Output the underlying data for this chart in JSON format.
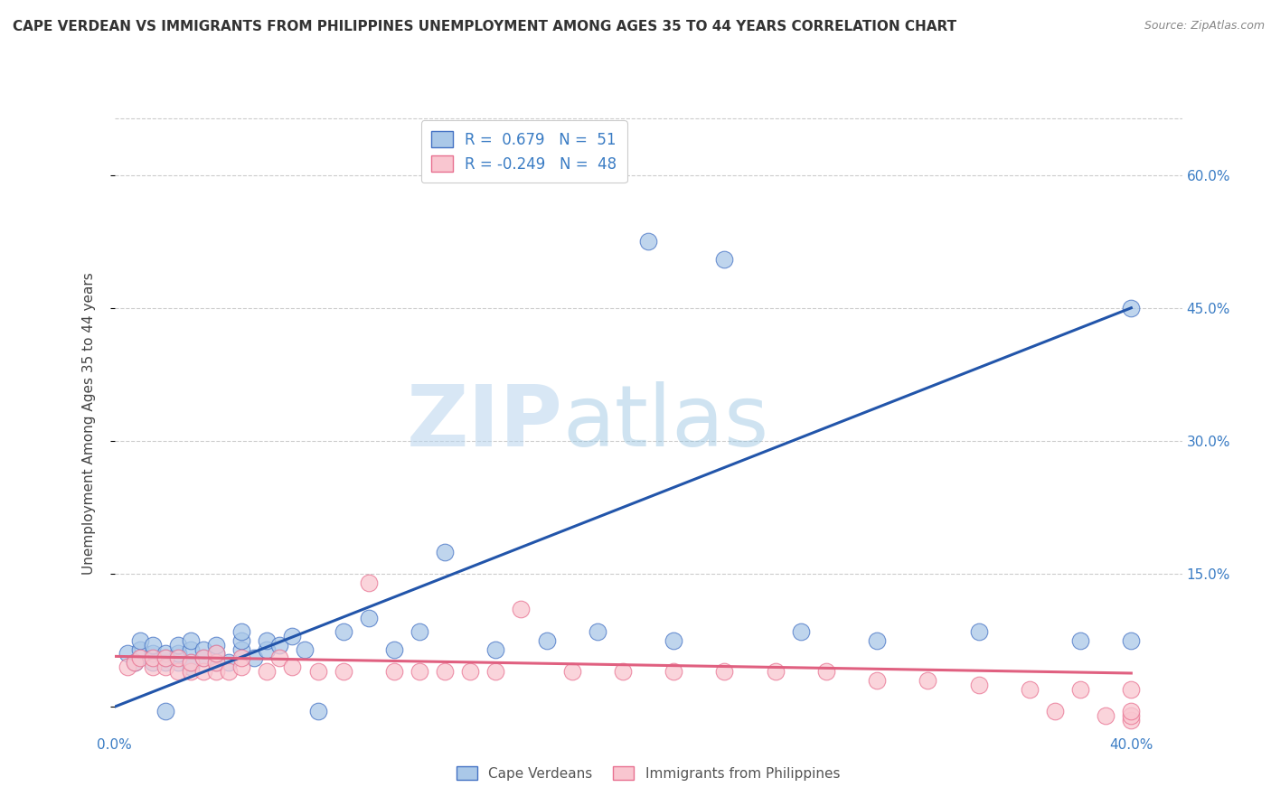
{
  "title": "CAPE VERDEAN VS IMMIGRANTS FROM PHILIPPINES UNEMPLOYMENT AMONG AGES 35 TO 44 YEARS CORRELATION CHART",
  "source": "Source: ZipAtlas.com",
  "ylabel": "Unemployment Among Ages 35 to 44 years",
  "ytick_values": [
    0.0,
    0.15,
    0.3,
    0.45,
    0.6
  ],
  "ytick_labels": [
    "",
    "15.0%",
    "30.0%",
    "45.0%",
    "60.0%"
  ],
  "xlim": [
    0.0,
    0.42
  ],
  "ylim": [
    -0.03,
    0.67
  ],
  "blue_R": 0.679,
  "blue_N": 51,
  "pink_R": -0.249,
  "pink_N": 48,
  "blue_fill_color": "#aac8e8",
  "blue_edge_color": "#4472c4",
  "pink_fill_color": "#f9c6d0",
  "pink_edge_color": "#e87090",
  "blue_line_color": "#2255aa",
  "pink_line_color": "#e06080",
  "background_color": "#ffffff",
  "grid_color": "#cccccc",
  "watermark_zip": "ZIP",
  "watermark_atlas": "atlas",
  "legend_label_blue": "Cape Verdeans",
  "legend_label_pink": "Immigrants from Philippines",
  "blue_scatter_x": [
    0.005,
    0.008,
    0.01,
    0.01,
    0.015,
    0.015,
    0.015,
    0.02,
    0.02,
    0.02,
    0.02,
    0.025,
    0.025,
    0.025,
    0.03,
    0.03,
    0.03,
    0.03,
    0.035,
    0.035,
    0.04,
    0.04,
    0.04,
    0.045,
    0.05,
    0.05,
    0.05,
    0.055,
    0.06,
    0.06,
    0.065,
    0.07,
    0.075,
    0.08,
    0.09,
    0.1,
    0.11,
    0.12,
    0.13,
    0.15,
    0.17,
    0.19,
    0.21,
    0.22,
    0.24,
    0.27,
    0.3,
    0.34,
    0.38,
    0.4,
    0.4
  ],
  "blue_scatter_y": [
    0.06,
    0.05,
    0.065,
    0.075,
    0.05,
    0.06,
    0.07,
    0.05,
    0.055,
    0.06,
    -0.005,
    0.05,
    0.06,
    0.07,
    0.045,
    0.05,
    0.065,
    0.075,
    0.055,
    0.065,
    0.05,
    0.06,
    0.07,
    0.05,
    0.065,
    0.075,
    0.085,
    0.055,
    0.065,
    0.075,
    0.07,
    0.08,
    0.065,
    -0.005,
    0.085,
    0.1,
    0.065,
    0.085,
    0.175,
    0.065,
    0.075,
    0.085,
    0.525,
    0.075,
    0.505,
    0.085,
    0.075,
    0.085,
    0.075,
    0.45,
    0.075
  ],
  "pink_scatter_x": [
    0.005,
    0.008,
    0.01,
    0.015,
    0.015,
    0.02,
    0.02,
    0.025,
    0.025,
    0.03,
    0.03,
    0.035,
    0.035,
    0.04,
    0.04,
    0.04,
    0.045,
    0.05,
    0.05,
    0.06,
    0.065,
    0.07,
    0.08,
    0.09,
    0.1,
    0.11,
    0.12,
    0.13,
    0.14,
    0.15,
    0.16,
    0.18,
    0.2,
    0.22,
    0.24,
    0.26,
    0.28,
    0.3,
    0.32,
    0.34,
    0.36,
    0.37,
    0.38,
    0.39,
    0.4,
    0.4,
    0.4,
    0.4
  ],
  "pink_scatter_y": [
    0.045,
    0.05,
    0.055,
    0.045,
    0.055,
    0.045,
    0.055,
    0.04,
    0.055,
    0.04,
    0.05,
    0.04,
    0.055,
    0.04,
    0.05,
    0.06,
    0.04,
    0.045,
    0.055,
    0.04,
    0.055,
    0.045,
    0.04,
    0.04,
    0.14,
    0.04,
    0.04,
    0.04,
    0.04,
    0.04,
    0.11,
    0.04,
    0.04,
    0.04,
    0.04,
    0.04,
    0.04,
    0.03,
    0.03,
    0.025,
    0.02,
    -0.005,
    0.02,
    -0.01,
    0.02,
    -0.015,
    -0.01,
    -0.005
  ],
  "blue_trend_x0": 0.0,
  "blue_trend_y0": 0.0,
  "blue_trend_x1": 0.4,
  "blue_trend_y1": 0.45,
  "pink_trend_x0": 0.0,
  "pink_trend_y0": 0.057,
  "pink_trend_x1": 0.4,
  "pink_trend_y1": 0.038,
  "title_fontsize": 11,
  "source_fontsize": 9,
  "tick_label_fontsize": 11,
  "ylabel_fontsize": 11
}
